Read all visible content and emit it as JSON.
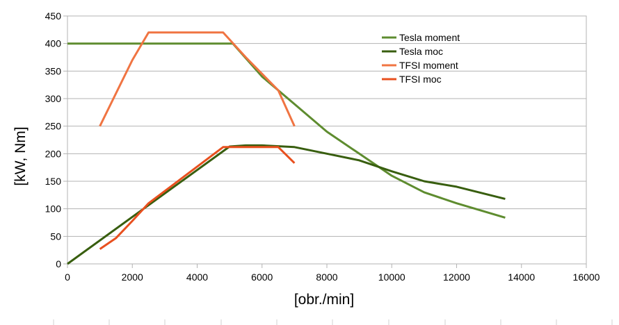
{
  "chart_data": {
    "type": "line",
    "title": "",
    "xlabel": "[obr./min]",
    "ylabel": "[kW, Nm]",
    "xlim": [
      0,
      16000
    ],
    "ylim": [
      0,
      450
    ],
    "xticks": [
      0,
      2000,
      4000,
      6000,
      8000,
      10000,
      12000,
      14000,
      16000
    ],
    "yticks": [
      0,
      50,
      100,
      150,
      200,
      250,
      300,
      350,
      400,
      450
    ],
    "grid": true,
    "legend_position": "top-right",
    "series": [
      {
        "name": "Tesla moment",
        "color": "#5e8c2f",
        "points": [
          [
            0,
            400
          ],
          [
            5100,
            400
          ],
          [
            6000,
            340
          ],
          [
            7000,
            290
          ],
          [
            8000,
            240
          ],
          [
            9000,
            200
          ],
          [
            10000,
            160
          ],
          [
            11000,
            130
          ],
          [
            12000,
            110
          ],
          [
            13500,
            84
          ]
        ]
      },
      {
        "name": "Tesla moc",
        "color": "#385e0f",
        "points": [
          [
            0,
            0
          ],
          [
            5000,
            213
          ],
          [
            5500,
            215
          ],
          [
            6000,
            215
          ],
          [
            7000,
            212
          ],
          [
            8000,
            200
          ],
          [
            9000,
            188
          ],
          [
            10000,
            168
          ],
          [
            11000,
            150
          ],
          [
            12000,
            140
          ],
          [
            13500,
            118
          ]
        ]
      },
      {
        "name": "TFSI moment",
        "color": "#f07442",
        "points": [
          [
            1000,
            250
          ],
          [
            1500,
            310
          ],
          [
            2000,
            370
          ],
          [
            2500,
            420
          ],
          [
            4800,
            420
          ],
          [
            5500,
            375
          ],
          [
            6000,
            345
          ],
          [
            6500,
            315
          ],
          [
            7000,
            250
          ]
        ]
      },
      {
        "name": "TFSI moc",
        "color": "#e8501f",
        "points": [
          [
            1000,
            27
          ],
          [
            1500,
            47
          ],
          [
            2000,
            78
          ],
          [
            2500,
            110
          ],
          [
            4800,
            212
          ],
          [
            6500,
            212
          ],
          [
            7000,
            183
          ]
        ]
      }
    ]
  }
}
